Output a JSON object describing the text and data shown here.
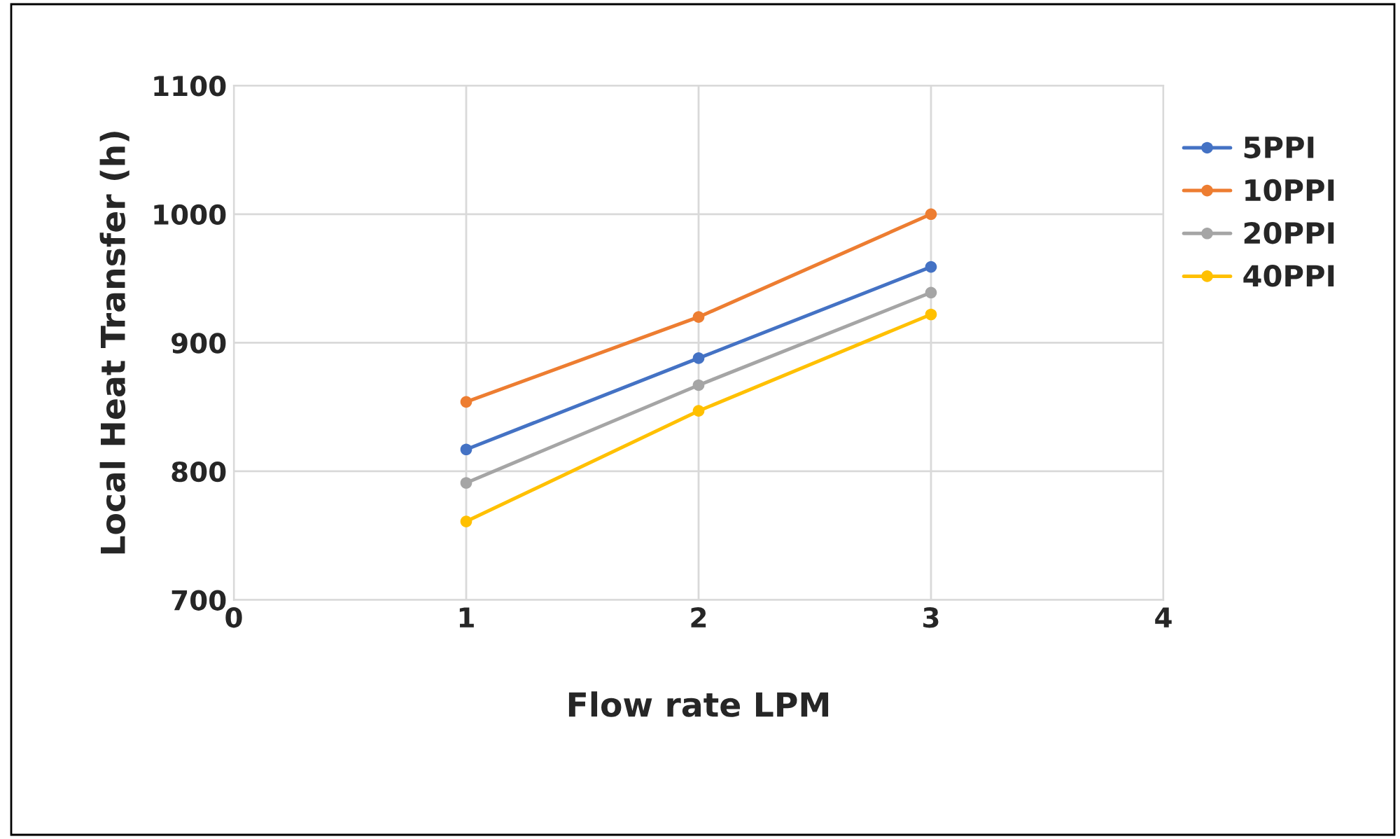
{
  "chart_data": {
    "type": "line",
    "xlabel": "Flow rate LPM",
    "ylabel": "Local Heat Transfer (h)",
    "xlim": [
      0,
      4
    ],
    "xticks": [
      0,
      1,
      2,
      3,
      4
    ],
    "ylim": [
      700,
      1100
    ],
    "yticks": [
      700,
      800,
      900,
      1000,
      1100
    ],
    "grid": true,
    "legend": "right",
    "marker": "circle",
    "line_style": "solid",
    "series": [
      {
        "name": "5PPI",
        "color": "#4472c4",
        "x": [
          1,
          2,
          3
        ],
        "values": [
          817,
          888,
          959
        ]
      },
      {
        "name": "10PPI",
        "color": "#ed7d31",
        "x": [
          1,
          2,
          3
        ],
        "values": [
          854,
          920,
          1000
        ]
      },
      {
        "name": "20PPI",
        "color": "#a5a5a5",
        "x": [
          1,
          2,
          3
        ],
        "values": [
          791,
          867,
          939
        ]
      },
      {
        "name": "40PPI",
        "color": "#ffc000",
        "x": [
          1,
          2,
          3
        ],
        "values": [
          761,
          847,
          922
        ]
      }
    ]
  }
}
